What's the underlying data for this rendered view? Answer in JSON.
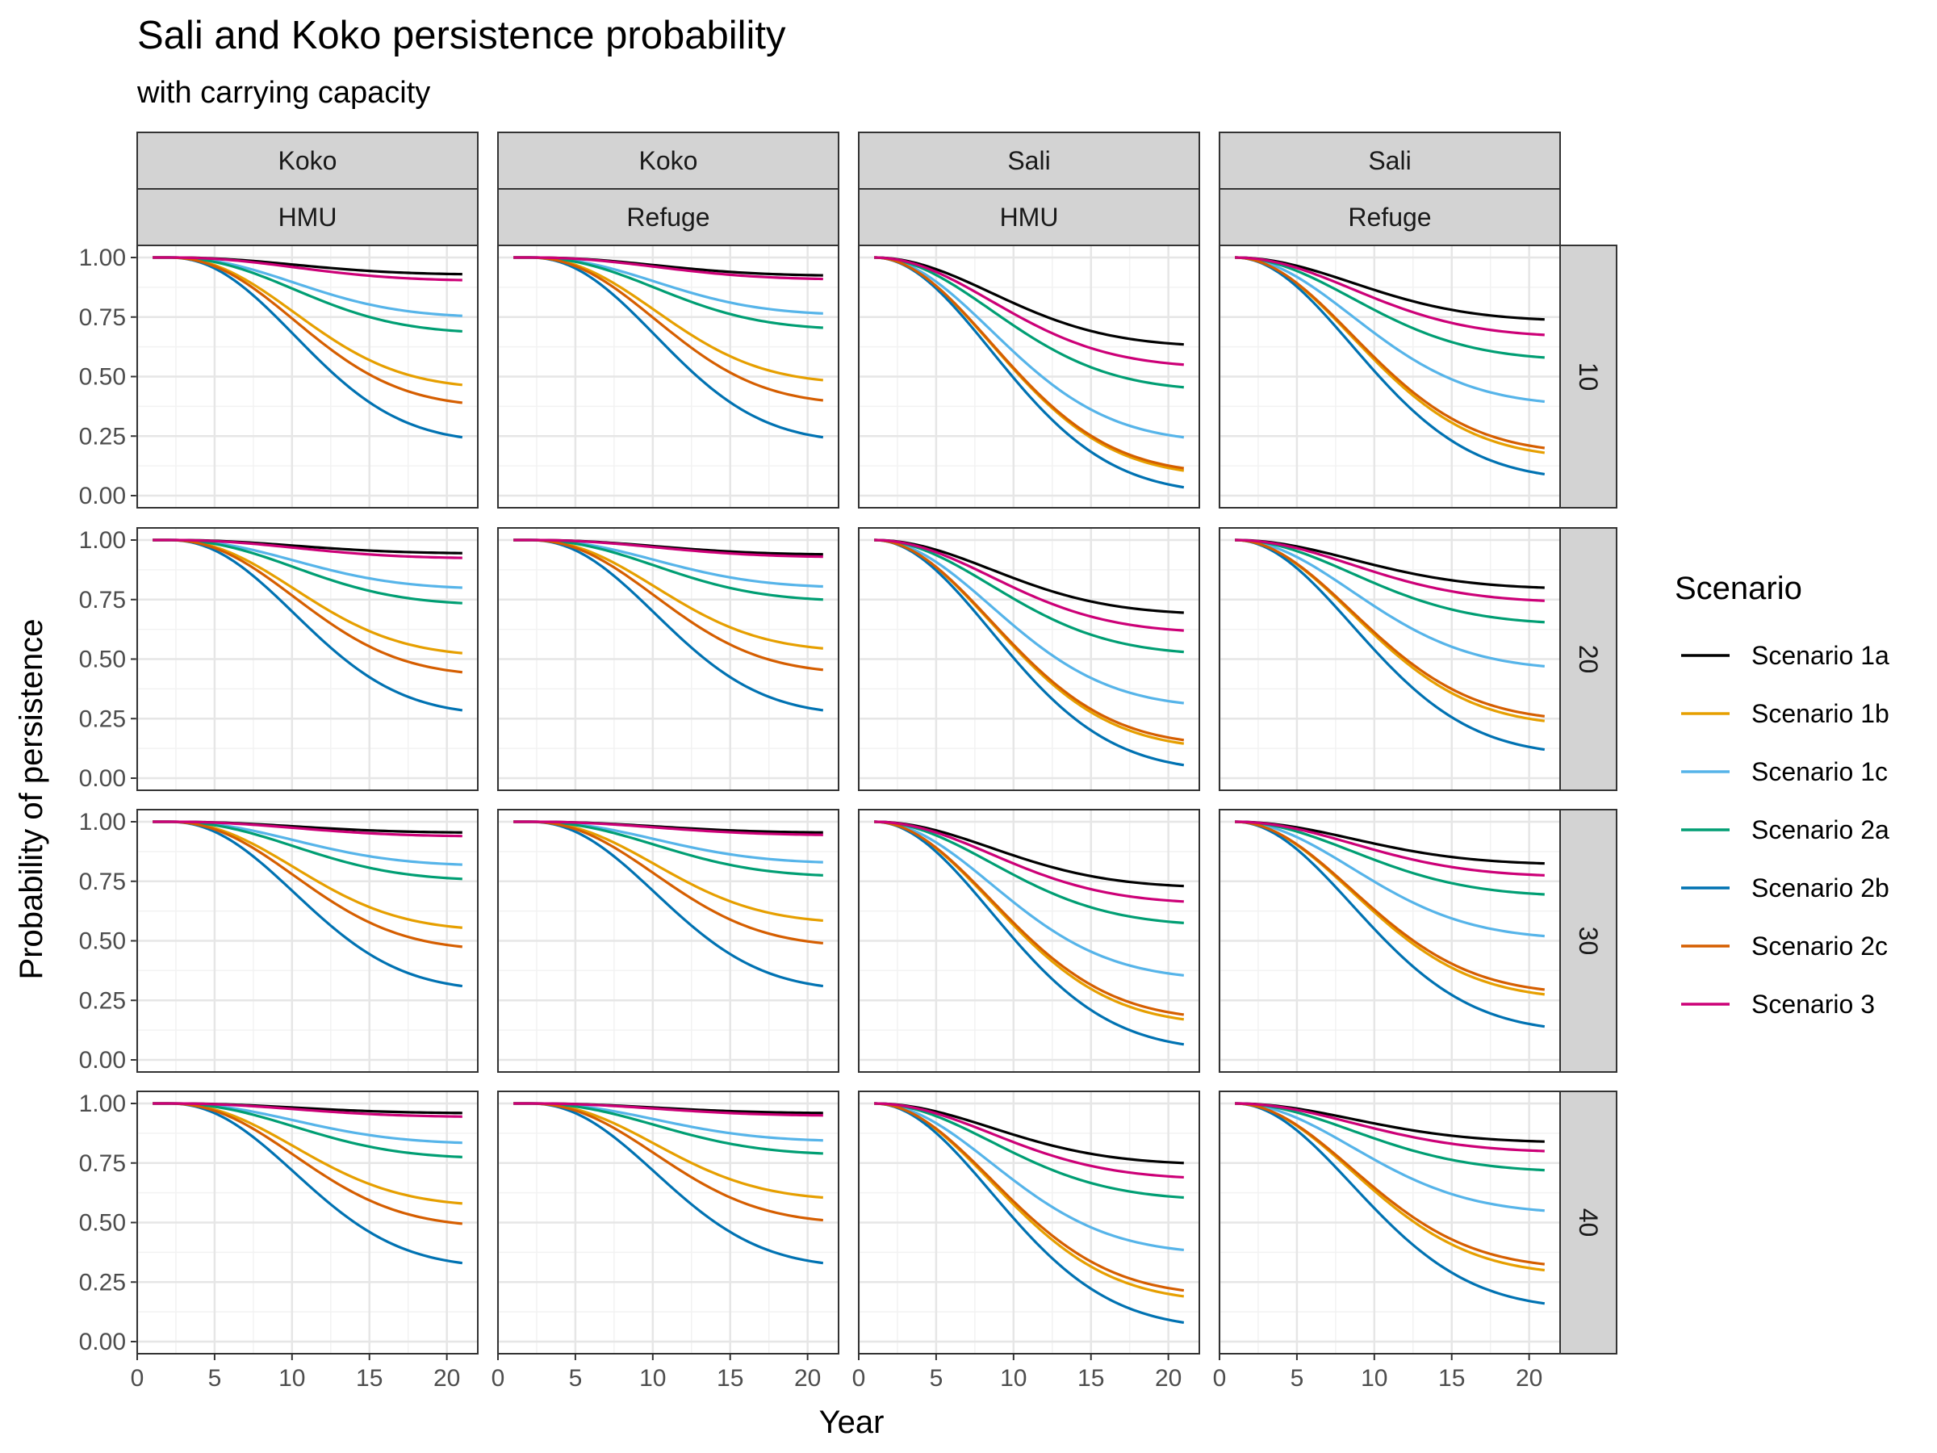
{
  "chart_data": {
    "type": "line",
    "title": "Sali and Koko persistence probability",
    "subtitle": "with carrying capacity",
    "xlabel": "Year",
    "ylabel": "Probability of persistence",
    "xlim": [
      0,
      22
    ],
    "ylim": [
      0,
      1
    ],
    "x_ticks": [
      0,
      5,
      10,
      15,
      20
    ],
    "y_ticks": [
      0,
      0.25,
      0.5,
      0.75,
      1
    ],
    "y_tick_labels": [
      "0.00",
      "0.25",
      "0.50",
      "0.75",
      "1.00"
    ],
    "grid": true,
    "legend": {
      "title": "Scenario",
      "position": "right",
      "entries": [
        {
          "key": "1a",
          "label": "Scenario 1a",
          "color": "#000000"
        },
        {
          "key": "1b",
          "label": "Scenario 1b",
          "color": "#E69F00"
        },
        {
          "key": "1c",
          "label": "Scenario 1c",
          "color": "#56B4E9"
        },
        {
          "key": "2a",
          "label": "Scenario 2a",
          "color": "#009E73"
        },
        {
          "key": "2b",
          "label": "Scenario 2b",
          "color": "#0072B2"
        },
        {
          "key": "2c",
          "label": "Scenario 2c",
          "color": "#D55E00"
        },
        {
          "key": "3",
          "label": "Scenario 3",
          "color": "#CC0077"
        }
      ]
    },
    "columns": [
      {
        "species": "Koko",
        "site": "HMU"
      },
      {
        "species": "Koko",
        "site": "Refuge"
      },
      {
        "species": "Sali",
        "site": "HMU"
      },
      {
        "species": "Sali",
        "site": "Refuge"
      }
    ],
    "rows": [
      "10",
      "20",
      "30",
      "40"
    ],
    "year_start": 1,
    "year_end": 21,
    "curve_shape": {
      "Koko": {
        "onset": 2,
        "power": 2.2
      },
      "Sali": {
        "onset": 1,
        "power": 2.0
      }
    },
    "final_values": {
      "Koko_HMU": {
        "10": {
          "1a": 0.93,
          "1b": 0.465,
          "1c": 0.755,
          "2a": 0.69,
          "2b": 0.245,
          "2c": 0.39,
          "3": 0.905
        },
        "20": {
          "1a": 0.945,
          "1b": 0.525,
          "1c": 0.8,
          "2a": 0.735,
          "2b": 0.285,
          "2c": 0.445,
          "3": 0.925
        },
        "30": {
          "1a": 0.955,
          "1b": 0.555,
          "1c": 0.82,
          "2a": 0.76,
          "2b": 0.31,
          "2c": 0.475,
          "3": 0.94
        },
        "40": {
          "1a": 0.96,
          "1b": 0.58,
          "1c": 0.835,
          "2a": 0.775,
          "2b": 0.33,
          "2c": 0.495,
          "3": 0.945
        }
      },
      "Koko_Refuge": {
        "10": {
          "1a": 0.925,
          "1b": 0.485,
          "1c": 0.765,
          "2a": 0.705,
          "2b": 0.245,
          "2c": 0.4,
          "3": 0.91
        },
        "20": {
          "1a": 0.94,
          "1b": 0.545,
          "1c": 0.805,
          "2a": 0.75,
          "2b": 0.285,
          "2c": 0.455,
          "3": 0.93
        },
        "30": {
          "1a": 0.955,
          "1b": 0.585,
          "1c": 0.83,
          "2a": 0.775,
          "2b": 0.31,
          "2c": 0.49,
          "3": 0.945
        },
        "40": {
          "1a": 0.96,
          "1b": 0.605,
          "1c": 0.845,
          "2a": 0.79,
          "2b": 0.33,
          "2c": 0.51,
          "3": 0.95
        }
      },
      "Sali_HMU": {
        "10": {
          "1a": 0.635,
          "1b": 0.105,
          "1c": 0.245,
          "2a": 0.455,
          "2b": 0.035,
          "2c": 0.115,
          "3": 0.55
        },
        "20": {
          "1a": 0.695,
          "1b": 0.145,
          "1c": 0.315,
          "2a": 0.53,
          "2b": 0.055,
          "2c": 0.16,
          "3": 0.62
        },
        "30": {
          "1a": 0.73,
          "1b": 0.17,
          "1c": 0.355,
          "2a": 0.575,
          "2b": 0.065,
          "2c": 0.19,
          "3": 0.665
        },
        "40": {
          "1a": 0.75,
          "1b": 0.19,
          "1c": 0.385,
          "2a": 0.605,
          "2b": 0.08,
          "2c": 0.215,
          "3": 0.69
        }
      },
      "Sali_Refuge": {
        "10": {
          "1a": 0.74,
          "1b": 0.18,
          "1c": 0.395,
          "2a": 0.58,
          "2b": 0.09,
          "2c": 0.2,
          "3": 0.675
        },
        "20": {
          "1a": 0.8,
          "1b": 0.24,
          "1c": 0.47,
          "2a": 0.655,
          "2b": 0.12,
          "2c": 0.26,
          "3": 0.745
        },
        "30": {
          "1a": 0.825,
          "1b": 0.275,
          "1c": 0.52,
          "2a": 0.695,
          "2b": 0.14,
          "2c": 0.295,
          "3": 0.775
        },
        "40": {
          "1a": 0.84,
          "1b": 0.3,
          "1c": 0.55,
          "2a": 0.72,
          "2b": 0.16,
          "2c": 0.325,
          "3": 0.8
        }
      }
    }
  }
}
